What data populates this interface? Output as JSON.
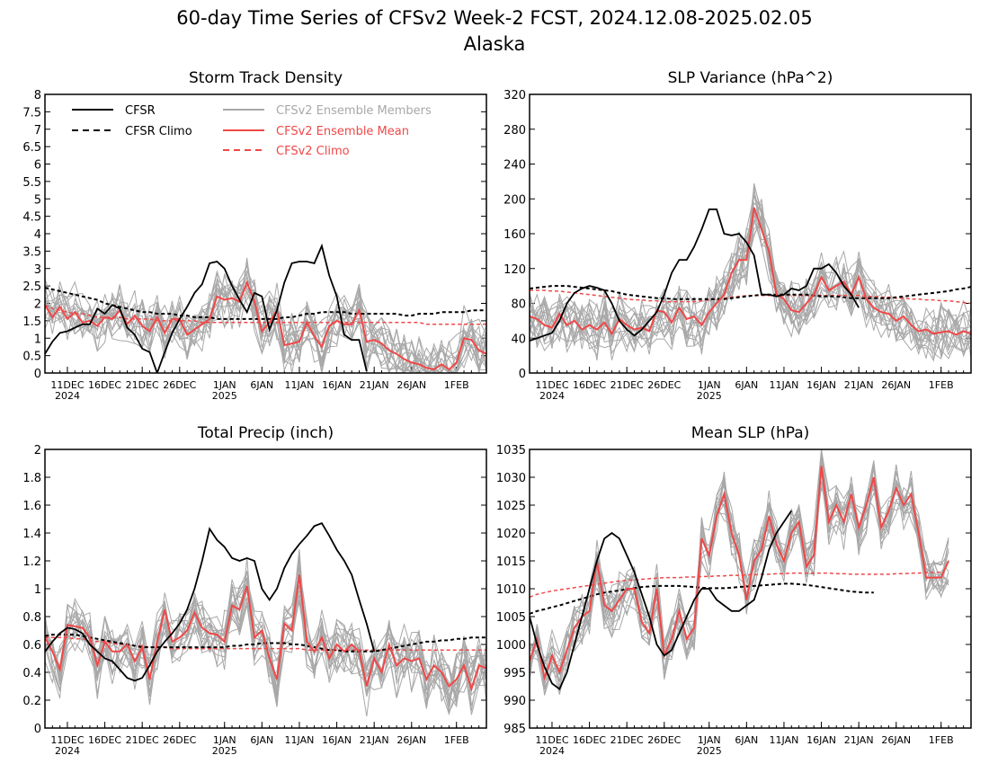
{
  "title_line1": "60-day Time Series of CFSv2 Week-2 FCST, 2024.12.08-2025.02.05",
  "title_line2": "Alaska",
  "legend": {
    "cfsr": "CFSR",
    "cfsr_climo": "CFSR Climo",
    "members": "CFSv2 Ensemble Members",
    "ens_mean": "CFSv2 Ensemble Mean",
    "cfsv2_climo": "CFSv2 Climo"
  },
  "colors": {
    "cfsr": "#000000",
    "cfsr_climo": "#000000",
    "members": "#a8a8a8",
    "ens_mean": "#f04848",
    "cfsv2_climo": "#f04848"
  },
  "x_axis": {
    "day_range": [
      0,
      59
    ],
    "ticks": [
      {
        "day": 3,
        "label": "11DEC",
        "sub": "2024"
      },
      {
        "day": 8,
        "label": "16DEC",
        "sub": ""
      },
      {
        "day": 13,
        "label": "21DEC",
        "sub": ""
      },
      {
        "day": 18,
        "label": "26DEC",
        "sub": ""
      },
      {
        "day": 24,
        "label": "1JAN",
        "sub": "2025"
      },
      {
        "day": 29,
        "label": "6JAN",
        "sub": ""
      },
      {
        "day": 34,
        "label": "11JAN",
        "sub": ""
      },
      {
        "day": 39,
        "label": "16JAN",
        "sub": ""
      },
      {
        "day": 44,
        "label": "21JAN",
        "sub": ""
      },
      {
        "day": 49,
        "label": "26JAN",
        "sub": ""
      },
      {
        "day": 55,
        "label": "1FEB",
        "sub": ""
      }
    ]
  },
  "chart_data": [
    {
      "type": "line",
      "title": "Storm Track Density",
      "ylim": [
        0,
        8
      ],
      "yticks": [
        "0",
        "0.5",
        "1",
        "1.5",
        "2",
        "2.5",
        "3",
        "3.5",
        "4",
        "4.5",
        "5",
        "5.5",
        "6",
        "6.5",
        "7",
        "7.5",
        "8"
      ],
      "show_legend": true,
      "cfsr": [
        0.55,
        0.9,
        1.15,
        1.2,
        1.3,
        1.4,
        1.4,
        1.85,
        1.7,
        1.95,
        1.85,
        1.3,
        1.1,
        0.7,
        0.6,
        0.0,
        0.6,
        1.15,
        1.55,
        1.9,
        2.3,
        2.55,
        3.15,
        3.2,
        3.0,
        2.5,
        2.1,
        1.75,
        2.3,
        2.2,
        1.25,
        1.8,
        2.6,
        3.15,
        3.2,
        3.2,
        3.15,
        3.65,
        2.8,
        2.2,
        1.1,
        0.95,
        0.95,
        0.05
      ],
      "cfsr_climo": [
        2.45,
        2.4,
        2.35,
        2.3,
        2.25,
        2.2,
        2.15,
        2.1,
        2.0,
        1.95,
        1.9,
        1.85,
        1.8,
        1.75,
        1.75,
        1.7,
        1.7,
        1.7,
        1.65,
        1.65,
        1.6,
        1.6,
        1.6,
        1.55,
        1.55,
        1.55,
        1.55,
        1.55,
        1.55,
        1.55,
        1.55,
        1.55,
        1.6,
        1.6,
        1.65,
        1.7,
        1.7,
        1.75,
        1.75,
        1.75,
        1.75,
        1.7,
        1.7,
        1.7,
        1.7,
        1.7,
        1.7,
        1.7,
        1.65,
        1.65,
        1.7,
        1.7,
        1.7,
        1.75,
        1.75,
        1.75,
        1.75,
        1.8,
        1.8,
        1.8
      ],
      "ens_mean": [
        1.95,
        1.6,
        1.9,
        1.55,
        1.75,
        1.45,
        1.5,
        1.35,
        1.6,
        1.55,
        1.8,
        1.4,
        1.65,
        1.35,
        1.2,
        1.6,
        1.15,
        1.55,
        1.55,
        1.1,
        1.25,
        1.4,
        1.55,
        2.2,
        2.1,
        2.15,
        2.05,
        2.6,
        2.05,
        1.2,
        1.45,
        1.8,
        0.8,
        0.85,
        0.9,
        1.45,
        1.05,
        0.75,
        1.35,
        1.5,
        1.4,
        1.4,
        1.8,
        0.9,
        0.95,
        0.85,
        0.65,
        0.55,
        0.4,
        0.3,
        0.25,
        0.15,
        0.1,
        0.25,
        0.1,
        0.3,
        1.0,
        0.95,
        0.65,
        0.55
      ],
      "cfsv2_climo": [
        1.95,
        1.85,
        1.8,
        1.75,
        1.7,
        1.7,
        1.65,
        1.6,
        1.6,
        1.6,
        1.6,
        1.55,
        1.55,
        1.55,
        1.55,
        1.5,
        1.5,
        1.5,
        1.5,
        1.5,
        1.5,
        1.45,
        1.45,
        1.45,
        1.45,
        1.45,
        1.45,
        1.45,
        1.45,
        1.45,
        1.45,
        1.45,
        1.45,
        1.45,
        1.45,
        1.45,
        1.45,
        1.45,
        1.45,
        1.45,
        1.45,
        1.45,
        1.45,
        1.45,
        1.45,
        1.45,
        1.45,
        1.45,
        1.45,
        1.45,
        1.45,
        1.4,
        1.4,
        1.4,
        1.4,
        1.4,
        1.4,
        1.4,
        1.4,
        1.4
      ],
      "member_spread": 0.7,
      "member_count": 16
    },
    {
      "type": "line",
      "title": "SLP Variance (hPa^2)",
      "ylim": [
        0,
        320
      ],
      "yticks": [
        "0",
        "40",
        "80",
        "120",
        "160",
        "200",
        "240",
        "280",
        "320"
      ],
      "show_legend": false,
      "cfsr": [
        37,
        40,
        43,
        46,
        60,
        80,
        92,
        97,
        100,
        98,
        95,
        80,
        60,
        50,
        43,
        50,
        60,
        70,
        90,
        115,
        130,
        130,
        145,
        165,
        188,
        188,
        160,
        158,
        160,
        150,
        135,
        90,
        90,
        88,
        90,
        97,
        95,
        100,
        120,
        120,
        125,
        115,
        100,
        90,
        75
      ],
      "cfsr_climo": [
        97,
        98,
        99,
        100,
        100,
        100,
        99,
        98,
        97,
        96,
        95,
        94,
        92,
        90,
        89,
        88,
        87,
        86,
        86,
        85,
        85,
        85,
        85,
        85,
        85,
        85,
        85,
        86,
        87,
        88,
        89,
        90,
        90,
        90,
        90,
        90,
        90,
        90,
        89,
        88,
        88,
        88,
        87,
        86,
        86,
        86,
        86,
        86,
        86,
        87,
        88,
        89,
        90,
        91,
        92,
        93,
        94,
        96,
        97,
        99
      ],
      "ens_mean": [
        65,
        62,
        55,
        52,
        68,
        55,
        60,
        50,
        55,
        50,
        58,
        45,
        62,
        55,
        50,
        52,
        48,
        72,
        70,
        58,
        75,
        62,
        65,
        55,
        70,
        80,
        90,
        115,
        130,
        130,
        190,
        165,
        140,
        90,
        85,
        72,
        70,
        80,
        90,
        110,
        95,
        100,
        105,
        90,
        110,
        85,
        75,
        70,
        68,
        60,
        65,
        55,
        48,
        50,
        45,
        47,
        48,
        44,
        48,
        45
      ],
      "cfsv2_climo": [
        95,
        95,
        95,
        94,
        94,
        93,
        92,
        91,
        90,
        89,
        88,
        87,
        86,
        85,
        84,
        84,
        83,
        83,
        82,
        82,
        82,
        82,
        82,
        83,
        84,
        85,
        86,
        87,
        88,
        89,
        89,
        89,
        89,
        89,
        89,
        89,
        89,
        89,
        89,
        89,
        89,
        89,
        89,
        89,
        89,
        88,
        88,
        87,
        87,
        86,
        86,
        85,
        85,
        84,
        84,
        83,
        83,
        82,
        81,
        80
      ],
      "member_spread": 28,
      "member_count": 16
    },
    {
      "type": "line",
      "title": "Total Precip (inch)",
      "ylim": [
        0,
        2
      ],
      "yticks": [
        "0",
        "0.2",
        "0.4",
        "0.6",
        "0.8",
        "1",
        "1.2",
        "1.4",
        "1.6",
        "1.8",
        "2"
      ],
      "show_legend": false,
      "cfsr": [
        0.55,
        0.62,
        0.68,
        0.72,
        0.71,
        0.68,
        0.6,
        0.55,
        0.5,
        0.48,
        0.42,
        0.36,
        0.34,
        0.36,
        0.45,
        0.55,
        0.62,
        0.68,
        0.75,
        0.85,
        1.0,
        1.2,
        1.43,
        1.35,
        1.3,
        1.22,
        1.2,
        1.22,
        1.2,
        1.0,
        0.92,
        1.0,
        1.15,
        1.25,
        1.32,
        1.38,
        1.45,
        1.47,
        1.38,
        1.28,
        1.2,
        1.1,
        0.92,
        0.75,
        0.55
      ],
      "cfsr_climo": [
        0.66,
        0.67,
        0.67,
        0.67,
        0.67,
        0.66,
        0.65,
        0.64,
        0.63,
        0.62,
        0.61,
        0.6,
        0.59,
        0.58,
        0.58,
        0.58,
        0.58,
        0.58,
        0.58,
        0.58,
        0.58,
        0.58,
        0.58,
        0.58,
        0.58,
        0.59,
        0.59,
        0.6,
        0.6,
        0.61,
        0.61,
        0.61,
        0.61,
        0.6,
        0.6,
        0.59,
        0.58,
        0.57,
        0.56,
        0.56,
        0.55,
        0.55,
        0.55,
        0.55,
        0.55,
        0.56,
        0.57,
        0.58,
        0.59,
        0.6,
        0.61,
        0.62,
        0.62,
        0.63,
        0.63,
        0.64,
        0.64,
        0.65,
        0.65,
        0.65
      ],
      "ens_mean": [
        0.65,
        0.55,
        0.42,
        0.74,
        0.73,
        0.72,
        0.65,
        0.45,
        0.62,
        0.55,
        0.55,
        0.6,
        0.48,
        0.58,
        0.35,
        0.62,
        0.85,
        0.62,
        0.65,
        0.7,
        0.83,
        0.72,
        0.68,
        0.67,
        0.62,
        0.88,
        0.85,
        1.02,
        0.65,
        0.7,
        0.5,
        0.35,
        0.75,
        0.7,
        1.1,
        0.62,
        0.55,
        0.65,
        0.5,
        0.6,
        0.55,
        0.6,
        0.55,
        0.3,
        0.5,
        0.4,
        0.6,
        0.45,
        0.5,
        0.48,
        0.5,
        0.35,
        0.45,
        0.4,
        0.3,
        0.35,
        0.45,
        0.28,
        0.45,
        0.43
      ],
      "cfsv2_climo": [
        0.65,
        0.65,
        0.65,
        0.65,
        0.64,
        0.64,
        0.63,
        0.62,
        0.62,
        0.61,
        0.6,
        0.6,
        0.59,
        0.59,
        0.58,
        0.58,
        0.58,
        0.57,
        0.57,
        0.57,
        0.57,
        0.57,
        0.57,
        0.57,
        0.57,
        0.57,
        0.57,
        0.57,
        0.57,
        0.57,
        0.57,
        0.57,
        0.57,
        0.57,
        0.57,
        0.56,
        0.56,
        0.56,
        0.56,
        0.56,
        0.56,
        0.56,
        0.56,
        0.56,
        0.56,
        0.56,
        0.56,
        0.56,
        0.56,
        0.56,
        0.56,
        0.56,
        0.56,
        0.56,
        0.56,
        0.56,
        0.56,
        0.56,
        0.56,
        0.56
      ],
      "member_spread": 0.18,
      "member_count": 16
    },
    {
      "type": "line",
      "title": "Mean SLP (hPa)",
      "ylim": [
        985,
        1035
      ],
      "yticks": [
        "985",
        "990",
        "995",
        "1000",
        "1005",
        "1010",
        "1015",
        "1020",
        "1025",
        "1030",
        "1035"
      ],
      "show_legend": false,
      "cfsr": [
        1005,
        1000,
        996,
        993,
        992,
        995,
        1000,
        1005,
        1010,
        1015,
        1019,
        1020,
        1019,
        1016,
        1013,
        1009,
        1005,
        1000,
        998,
        999,
        1002,
        1005,
        1008,
        1010,
        1010,
        1008,
        1007,
        1006,
        1006,
        1007,
        1008,
        1012,
        1017,
        1020,
        1022,
        1024
      ],
      "cfsr_climo": [
        1005.5,
        1006,
        1006.3,
        1006.7,
        1007,
        1007.4,
        1007.8,
        1008.2,
        1008.6,
        1009,
        1009.3,
        1009.5,
        1009.7,
        1009.9,
        1010.1,
        1010.3,
        1010.4,
        1010.5,
        1010.5,
        1010.5,
        1010.5,
        1010.4,
        1010.3,
        1010.2,
        1010.1,
        1010.1,
        1010.1,
        1010.2,
        1010.3,
        1010.4,
        1010.5,
        1010.6,
        1010.7,
        1010.8,
        1010.9,
        1010.9,
        1010.8,
        1010.7,
        1010.5,
        1010.3,
        1010.1,
        1009.9,
        1009.7,
        1009.5,
        1009.4,
        1009.3,
        1009.3
      ],
      "ens_mean": [
        997,
        1001,
        994,
        998,
        995,
        999,
        1003,
        1005,
        1006,
        1015,
        1007,
        1006,
        1008,
        1010,
        1010,
        1004,
        1002,
        1010,
        998,
        1001,
        1006,
        1001,
        1003,
        1019,
        1016,
        1023,
        1027,
        1020,
        1016,
        1008,
        1015,
        1017,
        1023,
        1018,
        1015,
        1020,
        1022,
        1014,
        1016,
        1032,
        1022,
        1025,
        1022,
        1027,
        1021,
        1025,
        1030,
        1021,
        1024,
        1028,
        1025,
        1027,
        1020,
        1012,
        1012,
        1012,
        1015
      ],
      "cfsv2_climo": [
        1008.5,
        1009,
        1009.3,
        1009.6,
        1009.8,
        1010,
        1010.2,
        1010.4,
        1010.6,
        1010.8,
        1011,
        1011.2,
        1011.4,
        1011.5,
        1011.6,
        1011.7,
        1011.8,
        1011.9,
        1012,
        1012,
        1012,
        1012.1,
        1012.1,
        1012.2,
        1012.2,
        1012.3,
        1012.3,
        1012.4,
        1012.4,
        1012.5,
        1012.5,
        1012.6,
        1012.6,
        1012.7,
        1012.7,
        1012.8,
        1012.8,
        1012.8,
        1012.8,
        1012.8,
        1012.8,
        1012.7,
        1012.7,
        1012.6,
        1012.6,
        1012.6,
        1012.6,
        1012.6,
        1012.6,
        1012.7,
        1012.7,
        1012.8,
        1012.8,
        1012.9,
        1012.9,
        1013
      ],
      "member_spread": 4,
      "member_count": 16
    }
  ]
}
